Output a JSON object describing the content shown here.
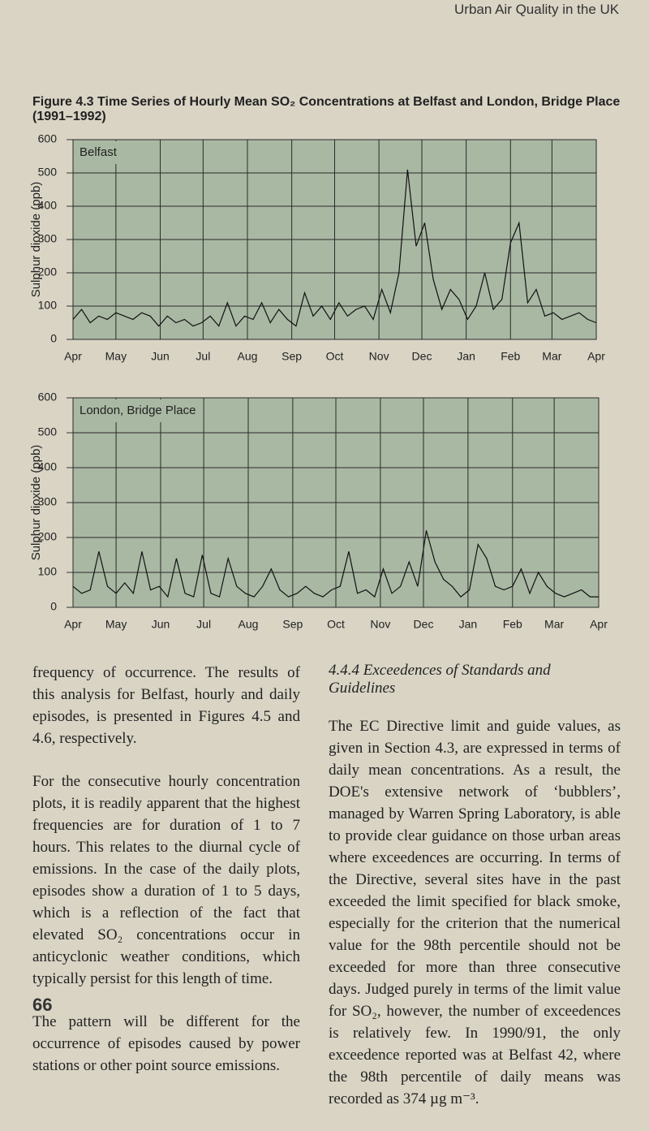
{
  "header": "Urban Air Quality in the UK",
  "figure_title": "Figure 4.3 Time Series of Hourly Mean SO₂ Concentrations at Belfast and London, Bridge Place (1991–1992)",
  "chart_data": [
    {
      "type": "line",
      "title": "Belfast",
      "y_label": "Sulphur dioxide (ppb)",
      "color": "#111111",
      "grid": true,
      "ylim": [
        0,
        600
      ],
      "yticks": [
        0,
        100,
        200,
        300,
        400,
        500,
        600
      ],
      "xlim": [
        0,
        366
      ],
      "xticks": [
        {
          "value": 0,
          "label": "Apr"
        },
        {
          "value": 30,
          "label": "May"
        },
        {
          "value": 61,
          "label": "Jun"
        },
        {
          "value": 91,
          "label": "Jul"
        },
        {
          "value": 122,
          "label": "Aug"
        },
        {
          "value": 153,
          "label": "Sep"
        },
        {
          "value": 183,
          "label": "Oct"
        },
        {
          "value": 214,
          "label": "Nov"
        },
        {
          "value": 244,
          "label": "Dec"
        },
        {
          "value": 275,
          "label": "Jan"
        },
        {
          "value": 306,
          "label": "Feb"
        },
        {
          "value": 335,
          "label": "Mar"
        },
        {
          "value": 366,
          "label": "Apr"
        }
      ],
      "x": [
        0,
        6,
        12,
        18,
        24,
        30,
        36,
        42,
        48,
        54,
        60,
        66,
        72,
        78,
        84,
        90,
        96,
        102,
        108,
        114,
        120,
        126,
        132,
        138,
        144,
        150,
        156,
        162,
        168,
        174,
        180,
        186,
        192,
        198,
        204,
        210,
        216,
        222,
        228,
        234,
        240,
        246,
        252,
        258,
        264,
        270,
        276,
        282,
        288,
        294,
        300,
        306,
        312,
        318,
        324,
        330,
        336,
        342,
        348,
        354,
        360,
        366
      ],
      "values": [
        60,
        90,
        50,
        70,
        60,
        80,
        70,
        60,
        80,
        70,
        40,
        70,
        50,
        60,
        40,
        50,
        70,
        40,
        110,
        40,
        70,
        60,
        110,
        50,
        90,
        60,
        40,
        140,
        70,
        100,
        60,
        110,
        70,
        90,
        100,
        60,
        150,
        80,
        200,
        510,
        280,
        350,
        180,
        90,
        150,
        120,
        60,
        100,
        200,
        90,
        120,
        290,
        350,
        110,
        150,
        70,
        80,
        60,
        70,
        80,
        60,
        50
      ]
    },
    {
      "type": "line",
      "title": "London, Bridge Place",
      "y_label": "Sulphur dioxide (ppb)",
      "color": "#111111",
      "grid": true,
      "ylim": [
        0,
        600
      ],
      "yticks": [
        0,
        100,
        200,
        300,
        400,
        500,
        600
      ],
      "xlim": [
        0,
        366
      ],
      "xticks": [
        {
          "value": 0,
          "label": "Apr"
        },
        {
          "value": 30,
          "label": "May"
        },
        {
          "value": 61,
          "label": "Jun"
        },
        {
          "value": 91,
          "label": "Jul"
        },
        {
          "value": 122,
          "label": "Aug"
        },
        {
          "value": 153,
          "label": "Sep"
        },
        {
          "value": 183,
          "label": "Oct"
        },
        {
          "value": 214,
          "label": "Nov"
        },
        {
          "value": 244,
          "label": "Dec"
        },
        {
          "value": 275,
          "label": "Jan"
        },
        {
          "value": 306,
          "label": "Feb"
        },
        {
          "value": 335,
          "label": "Mar"
        },
        {
          "value": 366,
          "label": "Apr"
        }
      ],
      "x": [
        0,
        6,
        12,
        18,
        24,
        30,
        36,
        42,
        48,
        54,
        60,
        66,
        72,
        78,
        84,
        90,
        96,
        102,
        108,
        114,
        120,
        126,
        132,
        138,
        144,
        150,
        156,
        162,
        168,
        174,
        180,
        186,
        192,
        198,
        204,
        210,
        216,
        222,
        228,
        234,
        240,
        246,
        252,
        258,
        264,
        270,
        276,
        282,
        288,
        294,
        300,
        306,
        312,
        318,
        324,
        330,
        336,
        342,
        348,
        354,
        360,
        366
      ],
      "values": [
        60,
        40,
        50,
        160,
        60,
        40,
        70,
        40,
        160,
        50,
        60,
        30,
        140,
        40,
        30,
        150,
        40,
        30,
        140,
        60,
        40,
        30,
        60,
        110,
        50,
        30,
        40,
        60,
        40,
        30,
        50,
        60,
        160,
        40,
        50,
        30,
        110,
        40,
        60,
        130,
        60,
        220,
        130,
        80,
        60,
        30,
        50,
        180,
        140,
        60,
        50,
        60,
        110,
        40,
        100,
        60,
        40,
        30,
        40,
        50,
        30,
        30
      ]
    }
  ],
  "left_column": [
    "frequency of occurrence. The results of this analysis for Belfast, hourly and daily episodes, is presented in Figures 4.5 and 4.6, respectively.",
    "For the consecutive hourly concentration plots, it is readily apparent that the highest frequencies are for duration of 1 to 7 hours. This relates to the diurnal cycle of emissions. In the case of the daily plots, episodes show a duration of 1 to 5 days, which is a reflection of the fact that elevated SO₂ concentrations occur in anticyclonic weather conditions, which typically persist for this length of time.",
    "The pattern will be different for the occurrence of episodes caused by power stations or other point source emissions."
  ],
  "section_heading": "4.4.4 Exceedences of Standards and Guidelines",
  "right_column": [
    "The EC Directive limit and guide values, as given in Section 4.3, are expressed in terms of daily mean concentrations. As a result, the DOE's extensive network of ‘bubblers’, managed by Warren Spring Laboratory, is able to provide clear guidance on those urban areas where exceedences are occurring. In terms of the Directive, several sites have in the past exceeded the limit specified for black smoke, especially for the criterion that the numerical value for the 98th percentile should not be exceeded for more than three consecutive days. Judged purely in terms of the limit value for SO₂, however, the number of exceedences is relatively few. In 1990/91, the only exceedence reported was at Belfast 42, where the 98th percentile of daily means was recorded as 374 µg m⁻³."
  ],
  "page_number": "66"
}
